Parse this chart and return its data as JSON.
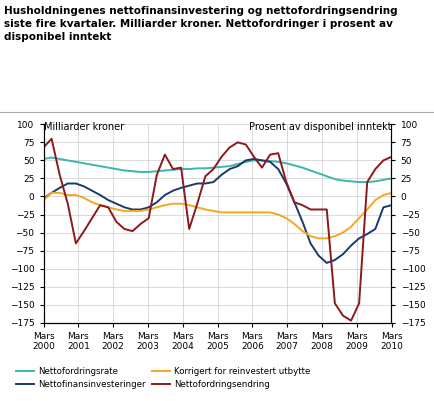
{
  "title": "Husholdningenes nettofinansinvestering og nettofordringsendring\nsiste fire kvartaler. Milliarder kroner. Nettofordringer i prosent av\ndisponibel inntekt",
  "ylabel_left": "Milliarder kroner",
  "ylabel_right": "Prosent av disponibel inntekt",
  "x_labels": [
    "Mars\n2000",
    "Mars\n2001",
    "Mars\n2002",
    "Mars\n2003",
    "Mars\n2004",
    "Mars\n2005",
    "Mars\n2006",
    "Mars\n2007",
    "Mars\n2008",
    "Mars\n2009",
    "Mars\n2010"
  ],
  "ylim": [
    -175,
    100
  ],
  "yticks": [
    -175,
    -150,
    -125,
    -100,
    -75,
    -50,
    -25,
    0,
    25,
    50,
    75,
    100
  ],
  "colors": {
    "nettofordringsrate": "#3cb5ad",
    "nettofinansinvesteringer": "#1a3a6b",
    "korrigert": "#f5a623",
    "nettofordringsendring": "#8b1a1a"
  },
  "nettofordringsrate": [
    52,
    54,
    52,
    50,
    48,
    46,
    44,
    42,
    40,
    38,
    36,
    35,
    34,
    34,
    35,
    36,
    37,
    38,
    38,
    39,
    39,
    40,
    41,
    42,
    45,
    48,
    50,
    50,
    49,
    48,
    46,
    43,
    40,
    36,
    32,
    28,
    24,
    22,
    21,
    20,
    20,
    21,
    23,
    25
  ],
  "nettofinansinvesteringer": [
    -3,
    5,
    12,
    18,
    18,
    14,
    8,
    2,
    -5,
    -10,
    -15,
    -18,
    -18,
    -15,
    -8,
    2,
    8,
    12,
    15,
    18,
    18,
    20,
    30,
    38,
    42,
    50,
    52,
    50,
    48,
    38,
    18,
    -8,
    -35,
    -65,
    -82,
    -92,
    -88,
    -80,
    -68,
    -58,
    -52,
    -45,
    -15,
    -12
  ],
  "korrigert": [
    -5,
    5,
    5,
    2,
    2,
    -2,
    -8,
    -12,
    -15,
    -18,
    -20,
    -20,
    -20,
    -18,
    -15,
    -12,
    -10,
    -10,
    -12,
    -15,
    -18,
    -20,
    -22,
    -22,
    -22,
    -22,
    -22,
    -22,
    -22,
    -25,
    -30,
    -38,
    -48,
    -55,
    -58,
    -58,
    -55,
    -50,
    -42,
    -30,
    -18,
    -5,
    2,
    5
  ],
  "nettofordringsendring": [
    68,
    80,
    30,
    -10,
    -65,
    -48,
    -30,
    -12,
    -15,
    -35,
    -45,
    -48,
    -38,
    -30,
    30,
    58,
    38,
    40,
    -45,
    -10,
    28,
    38,
    55,
    68,
    75,
    72,
    55,
    40,
    58,
    60,
    20,
    -8,
    -12,
    -18,
    -18,
    -18,
    -148,
    -165,
    -172,
    -148,
    20,
    38,
    50,
    55
  ],
  "background_color": "#ffffff",
  "grid_color": "#cccccc",
  "n_points": 44
}
